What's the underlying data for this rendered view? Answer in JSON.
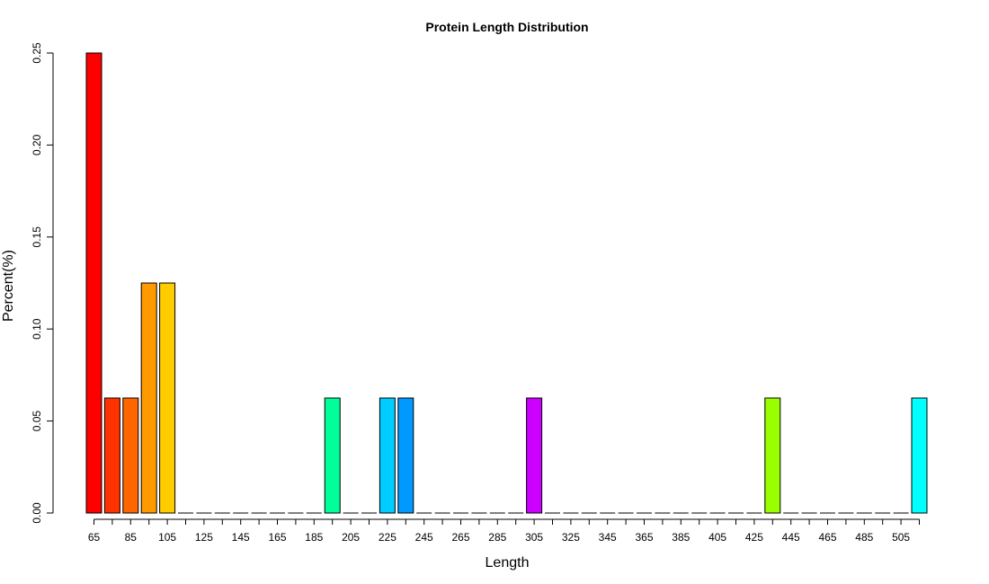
{
  "chart_data": {
    "type": "bar",
    "title": "Protein Length Distribution",
    "x_label": "Length",
    "y_label": "Percent(%)",
    "categories": [
      "65",
      null,
      "85",
      null,
      "105",
      null,
      "125",
      null,
      "145",
      null,
      "165",
      null,
      "185",
      null,
      "205",
      null,
      "225",
      null,
      "245",
      null,
      "265",
      null,
      "285",
      null,
      "305",
      null,
      "325",
      null,
      "345",
      null,
      "365",
      null,
      "385",
      null,
      "405",
      null,
      "425",
      null,
      "445",
      null,
      "465",
      null,
      "485",
      null,
      "505",
      null
    ],
    "values": [
      0.25,
      0.0625,
      0.0625,
      0.125,
      0.125,
      0,
      0,
      0,
      0,
      0,
      0,
      0,
      0,
      0.0625,
      0,
      0,
      0.0625,
      0.0625,
      0,
      0,
      0,
      0,
      0,
      0,
      0.0625,
      0,
      0,
      0,
      0,
      0,
      0,
      0,
      0,
      0,
      0,
      0,
      0,
      0.0625,
      0,
      0,
      0,
      0,
      0,
      0,
      0,
      0.0625
    ],
    "colors": [
      "#FF0000",
      "#FF3300",
      "#FF6600",
      "#FF9900",
      "#FFCC00",
      "#FFFF00",
      "#CCFF00",
      "#99FF00",
      "#66FF00",
      "#33FF00",
      "#00FF00",
      "#00FF33",
      "#00FF66",
      "#00FF99",
      "#00FFCC",
      "#00FFFF",
      "#00CCFF",
      "#0099FF",
      "#0066FF",
      "#0033FF",
      "#0000FF",
      "#3300FF",
      "#6600FF",
      "#9900FF",
      "#CC00FF",
      "#FF00FF",
      "#FF00CC",
      "#FF0099",
      "#FF0066",
      "#FF0033",
      "#FF0000",
      "#FF3300",
      "#FF6600",
      "#FF9900",
      "#FFCC00",
      "#FFFF00",
      "#CCFF00",
      "#99FF00",
      "#66FF00",
      "#33FF00",
      "#00FF00",
      "#00FF33",
      "#00FF66",
      "#00FF99",
      "#00FFCC",
      "#00FFFF"
    ],
    "ylim": [
      0,
      0.25
    ],
    "yticks": [
      {
        "value": 0,
        "label": "0.00"
      },
      {
        "value": 0.05,
        "label": "0.05"
      },
      {
        "value": 0.1,
        "label": "0.10"
      },
      {
        "value": 0.15,
        "label": "0.15"
      },
      {
        "value": 0.2,
        "label": "0.20"
      },
      {
        "value": 0.25,
        "label": "0.25"
      }
    ],
    "grid": false
  }
}
